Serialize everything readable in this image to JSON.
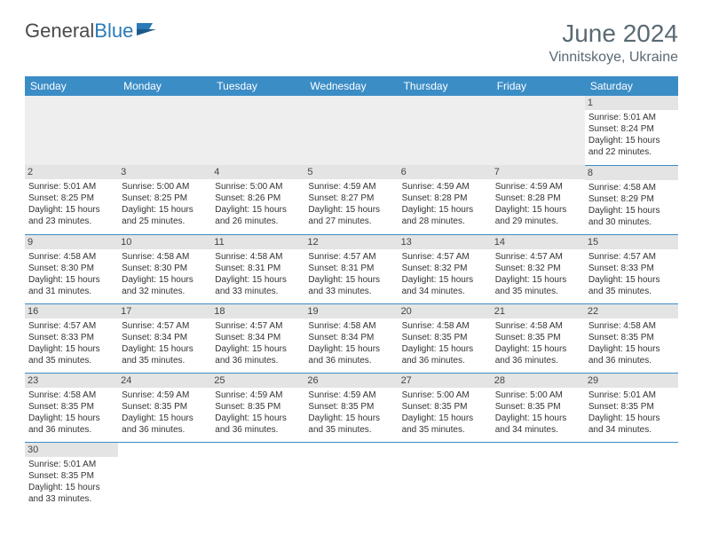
{
  "logo": {
    "text_a": "General",
    "text_b": "Blue"
  },
  "title": "June 2024",
  "location": "Vinnitskoye, Ukraine",
  "colors": {
    "header_bg": "#3b8dc6",
    "header_fg": "#ffffff",
    "daynum_bg": "#e4e4e4",
    "row_divider": "#3b8dc6",
    "title_color": "#5a6a74"
  },
  "weekdays": [
    "Sunday",
    "Monday",
    "Tuesday",
    "Wednesday",
    "Thursday",
    "Friday",
    "Saturday"
  ],
  "weeks": [
    [
      null,
      null,
      null,
      null,
      null,
      null,
      {
        "n": "1",
        "sr": "Sunrise: 5:01 AM",
        "ss": "Sunset: 8:24 PM",
        "dl": "Daylight: 15 hours and 22 minutes."
      }
    ],
    [
      {
        "n": "2",
        "sr": "Sunrise: 5:01 AM",
        "ss": "Sunset: 8:25 PM",
        "dl": "Daylight: 15 hours and 23 minutes."
      },
      {
        "n": "3",
        "sr": "Sunrise: 5:00 AM",
        "ss": "Sunset: 8:25 PM",
        "dl": "Daylight: 15 hours and 25 minutes."
      },
      {
        "n": "4",
        "sr": "Sunrise: 5:00 AM",
        "ss": "Sunset: 8:26 PM",
        "dl": "Daylight: 15 hours and 26 minutes."
      },
      {
        "n": "5",
        "sr": "Sunrise: 4:59 AM",
        "ss": "Sunset: 8:27 PM",
        "dl": "Daylight: 15 hours and 27 minutes."
      },
      {
        "n": "6",
        "sr": "Sunrise: 4:59 AM",
        "ss": "Sunset: 8:28 PM",
        "dl": "Daylight: 15 hours and 28 minutes."
      },
      {
        "n": "7",
        "sr": "Sunrise: 4:59 AM",
        "ss": "Sunset: 8:28 PM",
        "dl": "Daylight: 15 hours and 29 minutes."
      },
      {
        "n": "8",
        "sr": "Sunrise: 4:58 AM",
        "ss": "Sunset: 8:29 PM",
        "dl": "Daylight: 15 hours and 30 minutes."
      }
    ],
    [
      {
        "n": "9",
        "sr": "Sunrise: 4:58 AM",
        "ss": "Sunset: 8:30 PM",
        "dl": "Daylight: 15 hours and 31 minutes."
      },
      {
        "n": "10",
        "sr": "Sunrise: 4:58 AM",
        "ss": "Sunset: 8:30 PM",
        "dl": "Daylight: 15 hours and 32 minutes."
      },
      {
        "n": "11",
        "sr": "Sunrise: 4:58 AM",
        "ss": "Sunset: 8:31 PM",
        "dl": "Daylight: 15 hours and 33 minutes."
      },
      {
        "n": "12",
        "sr": "Sunrise: 4:57 AM",
        "ss": "Sunset: 8:31 PM",
        "dl": "Daylight: 15 hours and 33 minutes."
      },
      {
        "n": "13",
        "sr": "Sunrise: 4:57 AM",
        "ss": "Sunset: 8:32 PM",
        "dl": "Daylight: 15 hours and 34 minutes."
      },
      {
        "n": "14",
        "sr": "Sunrise: 4:57 AM",
        "ss": "Sunset: 8:32 PM",
        "dl": "Daylight: 15 hours and 35 minutes."
      },
      {
        "n": "15",
        "sr": "Sunrise: 4:57 AM",
        "ss": "Sunset: 8:33 PM",
        "dl": "Daylight: 15 hours and 35 minutes."
      }
    ],
    [
      {
        "n": "16",
        "sr": "Sunrise: 4:57 AM",
        "ss": "Sunset: 8:33 PM",
        "dl": "Daylight: 15 hours and 35 minutes."
      },
      {
        "n": "17",
        "sr": "Sunrise: 4:57 AM",
        "ss": "Sunset: 8:34 PM",
        "dl": "Daylight: 15 hours and 35 minutes."
      },
      {
        "n": "18",
        "sr": "Sunrise: 4:57 AM",
        "ss": "Sunset: 8:34 PM",
        "dl": "Daylight: 15 hours and 36 minutes."
      },
      {
        "n": "19",
        "sr": "Sunrise: 4:58 AM",
        "ss": "Sunset: 8:34 PM",
        "dl": "Daylight: 15 hours and 36 minutes."
      },
      {
        "n": "20",
        "sr": "Sunrise: 4:58 AM",
        "ss": "Sunset: 8:35 PM",
        "dl": "Daylight: 15 hours and 36 minutes."
      },
      {
        "n": "21",
        "sr": "Sunrise: 4:58 AM",
        "ss": "Sunset: 8:35 PM",
        "dl": "Daylight: 15 hours and 36 minutes."
      },
      {
        "n": "22",
        "sr": "Sunrise: 4:58 AM",
        "ss": "Sunset: 8:35 PM",
        "dl": "Daylight: 15 hours and 36 minutes."
      }
    ],
    [
      {
        "n": "23",
        "sr": "Sunrise: 4:58 AM",
        "ss": "Sunset: 8:35 PM",
        "dl": "Daylight: 15 hours and 36 minutes."
      },
      {
        "n": "24",
        "sr": "Sunrise: 4:59 AM",
        "ss": "Sunset: 8:35 PM",
        "dl": "Daylight: 15 hours and 36 minutes."
      },
      {
        "n": "25",
        "sr": "Sunrise: 4:59 AM",
        "ss": "Sunset: 8:35 PM",
        "dl": "Daylight: 15 hours and 36 minutes."
      },
      {
        "n": "26",
        "sr": "Sunrise: 4:59 AM",
        "ss": "Sunset: 8:35 PM",
        "dl": "Daylight: 15 hours and 35 minutes."
      },
      {
        "n": "27",
        "sr": "Sunrise: 5:00 AM",
        "ss": "Sunset: 8:35 PM",
        "dl": "Daylight: 15 hours and 35 minutes."
      },
      {
        "n": "28",
        "sr": "Sunrise: 5:00 AM",
        "ss": "Sunset: 8:35 PM",
        "dl": "Daylight: 15 hours and 34 minutes."
      },
      {
        "n": "29",
        "sr": "Sunrise: 5:01 AM",
        "ss": "Sunset: 8:35 PM",
        "dl": "Daylight: 15 hours and 34 minutes."
      }
    ],
    [
      {
        "n": "30",
        "sr": "Sunrise: 5:01 AM",
        "ss": "Sunset: 8:35 PM",
        "dl": "Daylight: 15 hours and 33 minutes."
      },
      null,
      null,
      null,
      null,
      null,
      null
    ]
  ]
}
